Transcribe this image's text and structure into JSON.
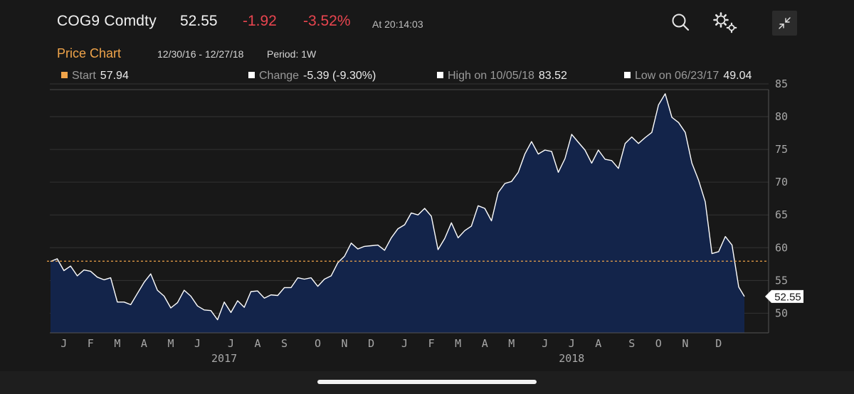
{
  "header": {
    "ticker": "COG9 Comdty",
    "last": "52.55",
    "change": "-1.92",
    "change_pct": "-3.52%",
    "as_of": "At 20:14:03",
    "icons": [
      "search-icon",
      "gear-icon",
      "collapse-icon"
    ]
  },
  "subheader": {
    "title": "Price Chart",
    "date_range": "12/30/16 - 12/27/18",
    "period": "Period: 1W"
  },
  "stats": {
    "start_label": "Start",
    "start_value": "57.94",
    "change_label": "Change",
    "change_value": "-5.39 (-9.30%)",
    "high_label": "High on 10/05/18",
    "high_value": "83.52",
    "low_label": "Low on 06/23/17",
    "low_value": "49.04"
  },
  "colors": {
    "accent_orange": "#f0a44a",
    "negative_red": "#e8454f",
    "area_fill": "#13244a",
    "line": "#ffffff",
    "background": "#181818"
  },
  "chart_data": {
    "type": "area",
    "title": "",
    "xlabel": "",
    "ylabel": "",
    "ylim": [
      47,
      85
    ],
    "y_ticks": [
      50,
      55,
      60,
      65,
      70,
      75,
      80,
      85
    ],
    "x_ticks": [
      {
        "label": "J",
        "date": "2017-01-13"
      },
      {
        "label": "F",
        "date": "2017-02-10"
      },
      {
        "label": "M",
        "date": "2017-03-10"
      },
      {
        "label": "A",
        "date": "2017-04-07"
      },
      {
        "label": "M",
        "date": "2017-05-05"
      },
      {
        "label": "J",
        "date": "2017-06-02"
      },
      {
        "label": "J",
        "date": "2017-07-07"
      },
      {
        "label": "A",
        "date": "2017-08-04"
      },
      {
        "label": "S",
        "date": "2017-09-01"
      },
      {
        "label": "O",
        "date": "2017-10-06"
      },
      {
        "label": "N",
        "date": "2017-11-03"
      },
      {
        "label": "D",
        "date": "2017-12-01"
      },
      {
        "label": "J",
        "date": "2018-01-05"
      },
      {
        "label": "F",
        "date": "2018-02-02"
      },
      {
        "label": "M",
        "date": "2018-03-02"
      },
      {
        "label": "A",
        "date": "2018-03-30"
      },
      {
        "label": "M",
        "date": "2018-04-27"
      },
      {
        "label": "J",
        "date": "2018-06-01"
      },
      {
        "label": "J",
        "date": "2018-06-29"
      },
      {
        "label": "A",
        "date": "2018-07-27"
      },
      {
        "label": "S",
        "date": "2018-08-31"
      },
      {
        "label": "O",
        "date": "2018-09-28"
      },
      {
        "label": "N",
        "date": "2018-10-26"
      },
      {
        "label": "D",
        "date": "2018-11-30"
      }
    ],
    "year_labels": [
      {
        "label": "2017",
        "date": "2017-06-30"
      },
      {
        "label": "2018",
        "date": "2018-06-29"
      }
    ],
    "start_level": 57.94,
    "last_label": "52.55",
    "grid": true,
    "series": [
      {
        "values": [
          [
            "2016-12-30",
            57.9
          ],
          [
            "2017-01-06",
            58.3
          ],
          [
            "2017-01-13",
            56.5
          ],
          [
            "2017-01-20",
            57.2
          ],
          [
            "2017-01-27",
            55.7
          ],
          [
            "2017-02-03",
            56.6
          ],
          [
            "2017-02-10",
            56.4
          ],
          [
            "2017-02-17",
            55.5
          ],
          [
            "2017-02-24",
            55.1
          ],
          [
            "2017-03-03",
            55.4
          ],
          [
            "2017-03-10",
            51.7
          ],
          [
            "2017-03-17",
            51.7
          ],
          [
            "2017-03-24",
            51.3
          ],
          [
            "2017-03-31",
            53.0
          ],
          [
            "2017-04-07",
            54.7
          ],
          [
            "2017-04-14",
            56.0
          ],
          [
            "2017-04-21",
            53.5
          ],
          [
            "2017-04-28",
            52.6
          ],
          [
            "2017-05-05",
            50.8
          ],
          [
            "2017-05-12",
            51.6
          ],
          [
            "2017-05-19",
            53.5
          ],
          [
            "2017-05-26",
            52.6
          ],
          [
            "2017-06-02",
            51.1
          ],
          [
            "2017-06-09",
            50.5
          ],
          [
            "2017-06-16",
            50.4
          ],
          [
            "2017-06-23",
            49.0
          ],
          [
            "2017-06-30",
            51.7
          ],
          [
            "2017-07-07",
            50.1
          ],
          [
            "2017-07-14",
            51.9
          ],
          [
            "2017-07-21",
            50.9
          ],
          [
            "2017-07-28",
            53.3
          ],
          [
            "2017-08-04",
            53.4
          ],
          [
            "2017-08-11",
            52.3
          ],
          [
            "2017-08-18",
            52.8
          ],
          [
            "2017-08-25",
            52.7
          ],
          [
            "2017-09-01",
            53.9
          ],
          [
            "2017-09-08",
            53.9
          ],
          [
            "2017-09-15",
            55.4
          ],
          [
            "2017-09-22",
            55.2
          ],
          [
            "2017-09-29",
            55.4
          ],
          [
            "2017-10-06",
            54.1
          ],
          [
            "2017-10-13",
            55.2
          ],
          [
            "2017-10-20",
            55.7
          ],
          [
            "2017-10-27",
            57.7
          ],
          [
            "2017-11-03",
            58.7
          ],
          [
            "2017-11-10",
            60.7
          ],
          [
            "2017-11-17",
            59.8
          ],
          [
            "2017-11-24",
            60.2
          ],
          [
            "2017-12-01",
            60.3
          ],
          [
            "2017-12-08",
            60.4
          ],
          [
            "2017-12-15",
            59.6
          ],
          [
            "2017-12-22",
            61.5
          ],
          [
            "2017-12-29",
            62.9
          ],
          [
            "2018-01-05",
            63.5
          ],
          [
            "2018-01-12",
            65.3
          ],
          [
            "2018-01-19",
            65.0
          ],
          [
            "2018-01-26",
            66.0
          ],
          [
            "2018-02-02",
            64.8
          ],
          [
            "2018-02-09",
            59.7
          ],
          [
            "2018-02-16",
            61.4
          ],
          [
            "2018-02-23",
            63.8
          ],
          [
            "2018-03-02",
            61.5
          ],
          [
            "2018-03-09",
            62.6
          ],
          [
            "2018-03-16",
            63.3
          ],
          [
            "2018-03-23",
            66.4
          ],
          [
            "2018-03-30",
            66.0
          ],
          [
            "2018-04-06",
            64.1
          ],
          [
            "2018-04-13",
            68.4
          ],
          [
            "2018-04-20",
            69.8
          ],
          [
            "2018-04-27",
            70.1
          ],
          [
            "2018-05-04",
            71.5
          ],
          [
            "2018-05-11",
            74.3
          ],
          [
            "2018-05-18",
            76.2
          ],
          [
            "2018-05-25",
            74.3
          ],
          [
            "2018-06-01",
            74.9
          ],
          [
            "2018-06-08",
            74.7
          ],
          [
            "2018-06-15",
            71.5
          ],
          [
            "2018-06-22",
            73.6
          ],
          [
            "2018-06-29",
            77.3
          ],
          [
            "2018-07-06",
            76.1
          ],
          [
            "2018-07-13",
            74.9
          ],
          [
            "2018-07-20",
            72.9
          ],
          [
            "2018-07-27",
            74.9
          ],
          [
            "2018-08-03",
            73.5
          ],
          [
            "2018-08-10",
            73.3
          ],
          [
            "2018-08-17",
            72.1
          ],
          [
            "2018-08-24",
            75.9
          ],
          [
            "2018-08-31",
            76.9
          ],
          [
            "2018-09-07",
            75.9
          ],
          [
            "2018-09-14",
            76.8
          ],
          [
            "2018-09-21",
            77.6
          ],
          [
            "2018-09-28",
            81.8
          ],
          [
            "2018-10-05",
            83.5
          ],
          [
            "2018-10-12",
            79.9
          ],
          [
            "2018-10-19",
            79.1
          ],
          [
            "2018-10-26",
            77.6
          ],
          [
            "2018-11-02",
            72.9
          ],
          [
            "2018-11-09",
            70.3
          ],
          [
            "2018-11-16",
            67.0
          ],
          [
            "2018-11-23",
            59.1
          ],
          [
            "2018-11-30",
            59.4
          ],
          [
            "2018-12-07",
            61.7
          ],
          [
            "2018-12-14",
            60.4
          ],
          [
            "2018-12-21",
            54.0
          ],
          [
            "2018-12-27",
            52.55
          ]
        ]
      }
    ]
  }
}
